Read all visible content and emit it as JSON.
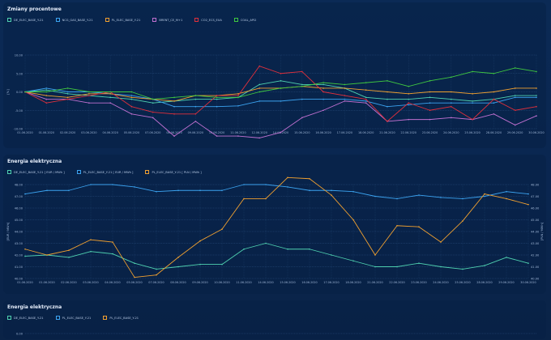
{
  "charts": [
    {
      "title": "Zmiany procentowe",
      "chart_data": {
        "type": "line",
        "categories": [
          "01.06.2020",
          "01.06.2020",
          "02.06.2020",
          "03.06.2020",
          "04.06.2020",
          "05.06.2020",
          "07.06.2020",
          "08.06.2020",
          "09.06.2020",
          "10.06.2020",
          "11.06.2020",
          "12.06.2020",
          "14.06.2020",
          "15.06.2020",
          "16.06.2020",
          "17.06.2020",
          "18.06.2020",
          "21.06.2020",
          "22.06.2020",
          "23.06.2020",
          "24.06.2020",
          "25.06.2020",
          "28.06.2020",
          "29.06.2020",
          "30.06.2020"
        ],
        "ylabel": "[%]",
        "ylim": [
          -10,
          10
        ],
        "yticks": [
          "10.00",
          "5.00",
          "0.00",
          "-5.00",
          "-10.00"
        ],
        "yticks_values": [
          10,
          5,
          0,
          -5,
          -10
        ],
        "series": [
          {
            "name": "DE_ELEC_BASE_Y-21",
            "color": "#4fd1b0",
            "values": [
              0,
              0.5,
              -0.5,
              -1,
              -1.5,
              -2,
              -3,
              -2.5,
              -2,
              -2,
              -1.5,
              2,
              3,
              2,
              2,
              1,
              -1.5,
              -2,
              -2,
              -1.5,
              -2,
              -2.5,
              -2,
              -1,
              -1
            ]
          },
          {
            "name": "NCG_GAS_BASE_Y-21",
            "color": "#3ba3f0",
            "values": [
              0,
              1,
              0,
              0,
              -0.5,
              -1,
              -2,
              -4,
              -4,
              -4,
              -3.8,
              -2.5,
              -2.5,
              -2,
              -2,
              -2,
              -2.5,
              -4,
              -3.5,
              -3,
              -3,
              -3,
              -3,
              -1.5,
              -1.5
            ]
          },
          {
            "name": "PL_ELEC_BASE_Y-21",
            "color": "#f0a030",
            "values": [
              0,
              -1,
              -1.5,
              -0.5,
              -0.5,
              -1.5,
              -2,
              -2.5,
              -1,
              -1,
              -0.5,
              1,
              1,
              1.5,
              1,
              1,
              0.5,
              0,
              -0.5,
              0,
              0,
              -0.5,
              0,
              1,
              1
            ]
          },
          {
            "name": "BRENT_CE_M+1",
            "color": "#c070d0",
            "values": [
              0,
              -2,
              -2,
              -3,
              -3,
              -6,
              -7,
              -12,
              -8,
              -12,
              -12,
              -12.5,
              -11,
              -7,
              -5,
              -2.5,
              -3,
              -8,
              -7.5,
              -7.5,
              -7,
              -7.5,
              -6,
              -9,
              -6.5
            ]
          },
          {
            "name": "CO2_ECS_EUA",
            "color": "#e0303c",
            "values": [
              0,
              -3,
              -2,
              -1,
              0,
              -4,
              -5.5,
              -6,
              -6,
              -1,
              -1,
              7,
              5,
              5.5,
              0,
              -1,
              -2,
              -8,
              -3,
              -5,
              -4,
              -7.5,
              -2,
              -5,
              -4
            ]
          },
          {
            "name": "COAL_API2",
            "color": "#40c840",
            "values": [
              0,
              0,
              1,
              0,
              0,
              0,
              -2,
              -1.5,
              -1,
              -1.5,
              -1.5,
              0,
              1,
              1.5,
              2.5,
              2,
              2.5,
              3,
              1.5,
              3,
              4,
              5.5,
              5,
              6.5,
              5.5
            ]
          }
        ]
      }
    },
    {
      "title": "Energia elektryczna",
      "chart_data": {
        "type": "line",
        "categories": [
          "01.06.2020",
          "01.06.2020",
          "02.06.2020",
          "03.06.2020",
          "04.06.2020",
          "05.06.2020",
          "07.06.2020",
          "08.06.2020",
          "09.06.2020",
          "10.06.2020",
          "11.06.2020",
          "14.06.2020",
          "15.06.2020",
          "16.06.2020",
          "17.06.2020",
          "18.06.2020",
          "21.06.2020",
          "22.06.2020",
          "23.06.2020",
          "24.06.2020",
          "25.06.2020",
          "28.06.2020",
          "29.06.2020",
          "30.06.2020"
        ],
        "ylabel": "[EUR / MWh]",
        "y2label": "[PLN / MWh]",
        "ylim": [
          40,
          48
        ],
        "yticks": [
          "48.00",
          "47.00",
          "46.00",
          "45.00",
          "44.00",
          "43.00",
          "42.00",
          "41.00",
          "40.00"
        ],
        "yticks_values": [
          48,
          47,
          46,
          45,
          44,
          43,
          42,
          41,
          40
        ],
        "series": [
          {
            "name": "DE_ELEC_BASE_Y-21 [ EUR / MWh ]",
            "color": "#4fd1b0",
            "axis": "left",
            "values": [
              41.9,
              42,
              41.8,
              42.3,
              42.1,
              41.3,
              40.8,
              41,
              41.2,
              41.2,
              42.5,
              43,
              42.5,
              42.5,
              42,
              41.5,
              41,
              41,
              41.3,
              41,
              40.8,
              41.1,
              41.8,
              41.3
            ]
          },
          {
            "name": "PL_ELEC_BASE_Y-21 [ EUR / MWh ]",
            "color": "#3ba3f0",
            "axis": "left",
            "values": [
              47.2,
              47.5,
              47.5,
              48,
              48,
              47.8,
              47.4,
              47.5,
              47.5,
              47.5,
              48,
              48,
              47.8,
              47.5,
              47.5,
              47.4,
              47,
              46.8,
              47.1,
              46.9,
              46.8,
              47,
              47.4,
              47.2
            ]
          },
          {
            "name": "PL_ELEC_BASE_Y-21 [ PLN / MWh ]",
            "color": "#f0a030",
            "axis": "right",
            "values": [
              42.5,
              42,
              42.4,
              43.3,
              43.1,
              40.1,
              40.3,
              41.8,
              43.2,
              44.2,
              46.8,
              46.8,
              48.6,
              48.5,
              47.1,
              45,
              42,
              44.5,
              44.4,
              43.1,
              44.9,
              47.2,
              46.8,
              46.3
            ]
          }
        ]
      }
    },
    {
      "title": "Energia elektryczna",
      "chart_data": {
        "type": "line",
        "yticks": [
          "0.00"
        ],
        "series": [
          {
            "name": "DE_ELEC_BASE_Y-21",
            "color": "#4fd1b0"
          },
          {
            "name": "PL_ELEC_BASE_Y-21",
            "color": "#3ba3f0"
          },
          {
            "name": "PL_ELEC_BASE_Y-21",
            "color": "#f0a030"
          }
        ]
      }
    }
  ]
}
